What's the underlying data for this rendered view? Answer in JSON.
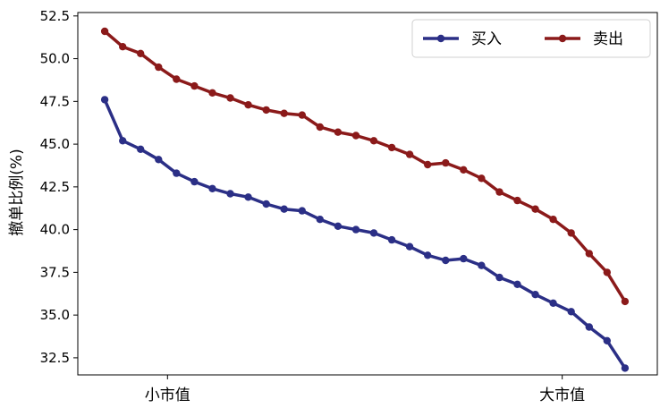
{
  "chart_data": {
    "type": "line",
    "ylabel": "撤单比例(%)",
    "xlabel": "",
    "ylim": [
      31.5,
      52.7
    ],
    "yticks": [
      32.5,
      35.0,
      37.5,
      40.0,
      42.5,
      45.0,
      47.5,
      50.0,
      52.5
    ],
    "ytick_labels": [
      "32.5",
      "35.0",
      "37.5",
      "40.0",
      "42.5",
      "45.0",
      "47.5",
      "50.0",
      "52.5"
    ],
    "x_count": 30,
    "xlim": [
      -1.5,
      30.8
    ],
    "xticks": [
      {
        "label": "小市值",
        "x": 3.5
      },
      {
        "label": "大市值",
        "x": 25.5
      }
    ],
    "legend": "top-right",
    "grid": false,
    "series": [
      {
        "name": "买入",
        "color": "#2b2f86",
        "values": [
          47.6,
          45.2,
          44.7,
          44.1,
          43.3,
          42.8,
          42.4,
          42.1,
          41.9,
          41.5,
          41.2,
          41.1,
          40.6,
          40.2,
          40.0,
          39.8,
          39.4,
          39.0,
          38.5,
          38.2,
          38.3,
          37.9,
          37.2,
          36.8,
          36.2,
          35.7,
          35.2,
          34.3,
          33.5,
          31.9
        ]
      },
      {
        "name": "卖出",
        "color": "#8b1a1a",
        "values": [
          51.6,
          50.7,
          50.3,
          49.5,
          48.8,
          48.4,
          48.0,
          47.7,
          47.3,
          47.0,
          46.8,
          46.7,
          46.0,
          45.7,
          45.5,
          45.2,
          44.8,
          44.4,
          43.8,
          43.9,
          43.5,
          43.0,
          42.2,
          41.7,
          41.2,
          40.6,
          39.8,
          38.6,
          37.5,
          35.8
        ]
      }
    ]
  }
}
